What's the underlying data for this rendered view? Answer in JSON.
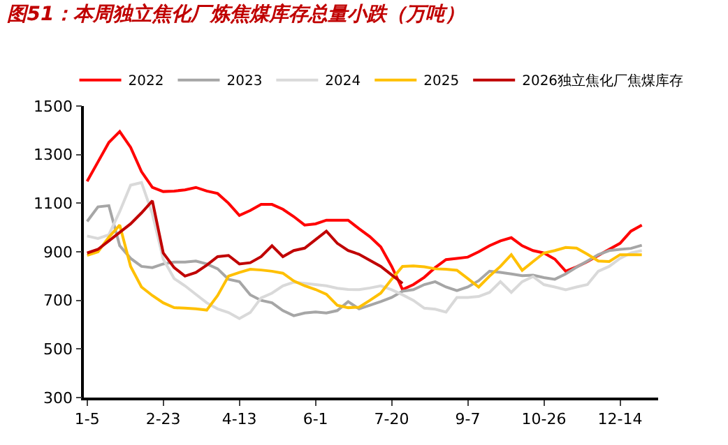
{
  "chart_data": {
    "type": "line",
    "title": "图51：本周独立焦化厂炼焦煤库存总量小跌（万吨）",
    "categories": [
      "1-5",
      null,
      null,
      null,
      null,
      null,
      null,
      "2-23",
      null,
      null,
      null,
      null,
      null,
      null,
      "4-13",
      null,
      null,
      null,
      null,
      null,
      null,
      "6-1",
      null,
      null,
      null,
      null,
      null,
      null,
      "7-20",
      null,
      null,
      null,
      null,
      null,
      null,
      "9-7",
      null,
      null,
      null,
      null,
      null,
      null,
      "10-26",
      null,
      null,
      null,
      null,
      null,
      null,
      "12-14",
      null,
      null
    ],
    "ylim": [
      300,
      1500
    ],
    "yticks": [
      300,
      500,
      700,
      900,
      1100,
      1300,
      1500
    ],
    "legend": "top",
    "marker": "none",
    "line_style": "solid",
    "series": [
      {
        "name": "2022",
        "color": "#ff0000",
        "values": [
          1190,
          1270,
          1350,
          1395,
          1330,
          1230,
          1165,
          1148,
          1150,
          1155,
          1165,
          1150,
          1140,
          1100,
          1050,
          1070,
          1095,
          1095,
          1075,
          1045,
          1010,
          1015,
          1030,
          1030,
          1030,
          995,
          962,
          920,
          840,
          745,
          765,
          795,
          835,
          868,
          873,
          878,
          900,
          925,
          945,
          958,
          925,
          905,
          895,
          870,
          820,
          838,
          860,
          885,
          910,
          935,
          985,
          1010
        ]
      },
      {
        "name": "2023",
        "color": "#a6a6a6",
        "values": [
          1025,
          1085,
          1090,
          925,
          873,
          840,
          835,
          850,
          858,
          858,
          862,
          850,
          830,
          787,
          777,
          723,
          700,
          690,
          658,
          637,
          648,
          652,
          648,
          658,
          695,
          665,
          680,
          695,
          712,
          738,
          744,
          765,
          777,
          755,
          740,
          755,
          781,
          820,
          815,
          809,
          802,
          804,
          794,
          787,
          809,
          837,
          862,
          888,
          905,
          910,
          914,
          927
        ]
      },
      {
        "name": "2024",
        "color": "#d9d9d9",
        "values": [
          965,
          955,
          970,
          1066,
          1174,
          1185,
          1056,
          870,
          790,
          760,
          725,
          690,
          665,
          650,
          625,
          650,
          710,
          730,
          760,
          775,
          770,
          765,
          760,
          750,
          745,
          744,
          751,
          760,
          744,
          723,
          700,
          668,
          664,
          652,
          712,
          712,
          716,
          733,
          777,
          733,
          777,
          798,
          765,
          755,
          744,
          755,
          765,
          820,
          840,
          873,
          895,
          905
        ]
      },
      {
        "name": "2025",
        "color": "#ffc000",
        "values": [
          885,
          900,
          960,
          1010,
          840,
          755,
          720,
          690,
          670,
          668,
          665,
          660,
          720,
          800,
          815,
          828,
          825,
          820,
          812,
          780,
          760,
          745,
          725,
          680,
          670,
          672,
          700,
          730,
          787,
          840,
          842,
          838,
          830,
          828,
          824,
          790,
          755,
          800,
          840,
          888,
          824,
          860,
          895,
          905,
          918,
          915,
          890,
          862,
          860,
          888,
          888,
          888
        ]
      },
      {
        "name": "2026独立焦化厂焦煤库存",
        "color": "#c00000",
        "values": [
          895,
          910,
          945,
          980,
          1015,
          1060,
          1110,
          895,
          835,
          800,
          815,
          845,
          880,
          885,
          850,
          855,
          880,
          925,
          880,
          905,
          915,
          950,
          985,
          935,
          905,
          890,
          865,
          840,
          805,
          770,
          null,
          null,
          null,
          null,
          null,
          null,
          null,
          null,
          null,
          null,
          null,
          null,
          null,
          null,
          null,
          null,
          null,
          null,
          null,
          null,
          null,
          null
        ]
      }
    ]
  }
}
